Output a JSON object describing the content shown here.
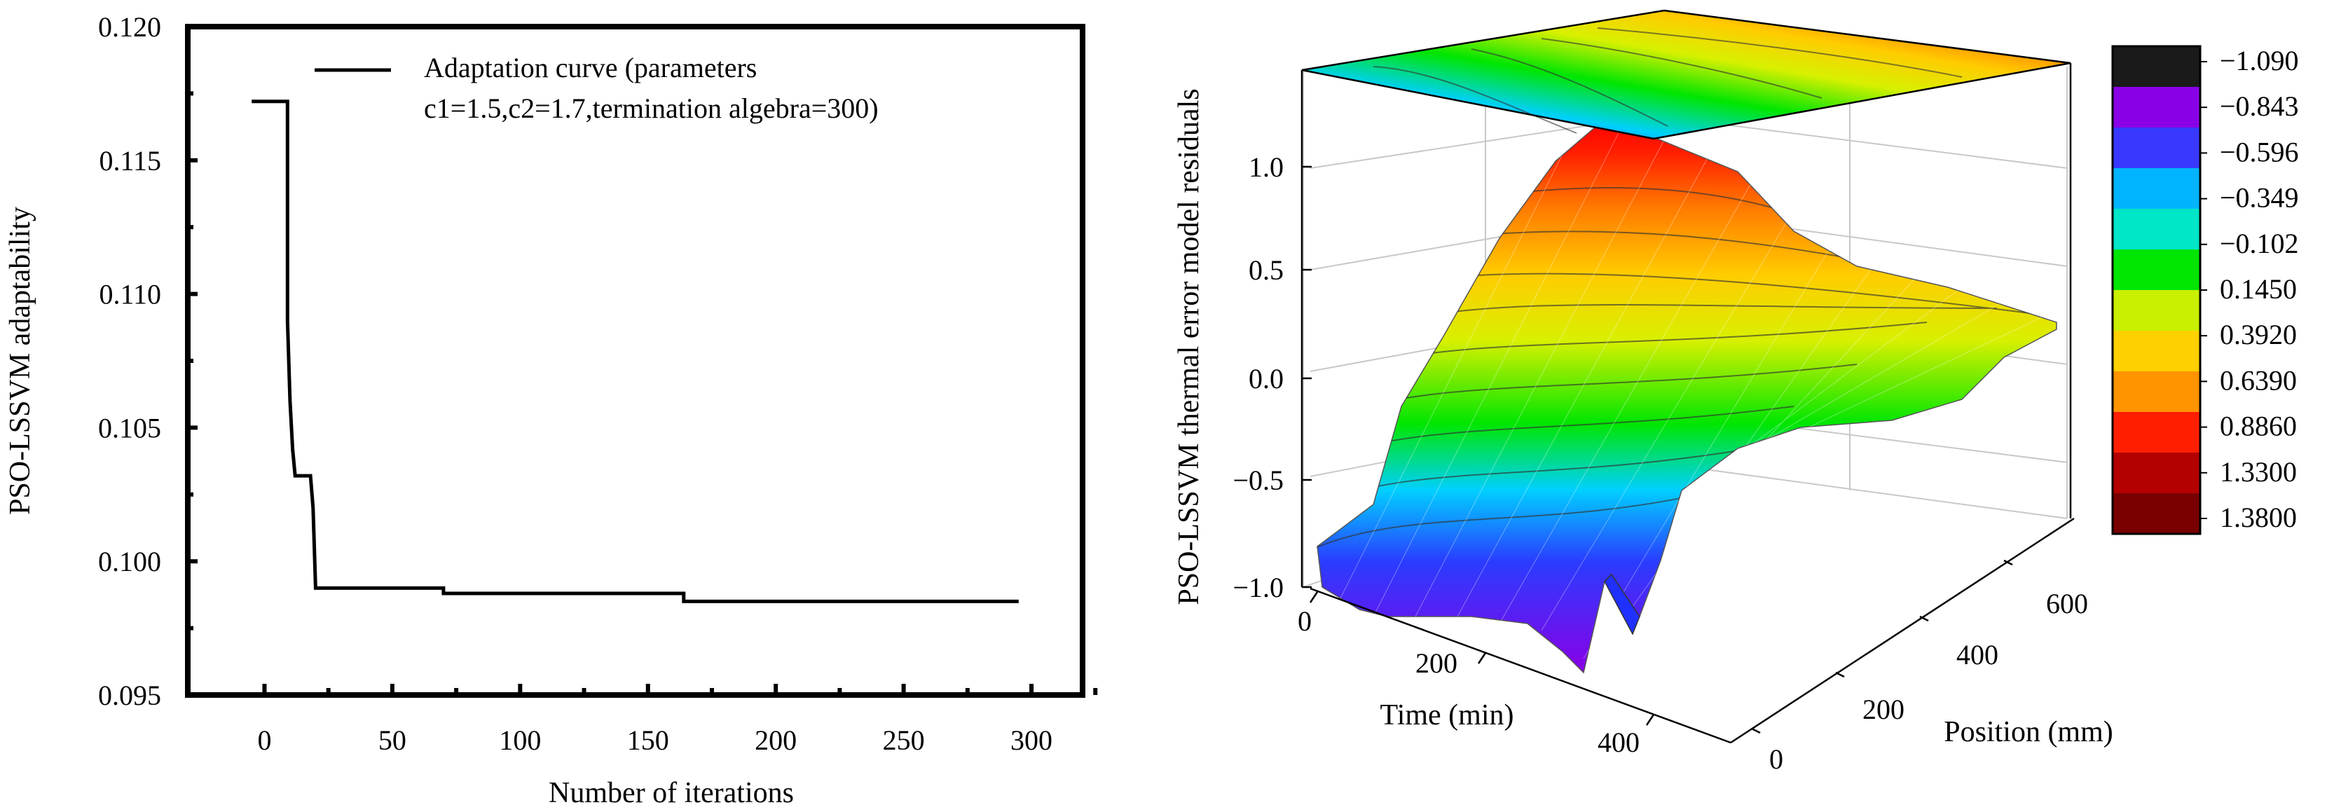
{
  "chart_data": [
    {
      "type": "line",
      "title": "",
      "xlabel": "Number of iterations",
      "ylabel": "PSO-LSSVM adaptability",
      "xlim": [
        -30,
        320
      ],
      "ylim": [
        0.095,
        0.12
      ],
      "x_ticks": [
        0,
        50,
        100,
        150,
        200,
        250,
        300
      ],
      "y_ticks": [
        0.095,
        0.1,
        0.105,
        0.11,
        0.115,
        0.12
      ],
      "x_tick_labels": [
        "0",
        "50",
        "100",
        "150",
        "200",
        "250",
        "300"
      ],
      "y_tick_labels": [
        "0.095",
        "0.100",
        "0.105",
        "0.110",
        "0.115",
        "0.120"
      ],
      "legend": {
        "line1": "Adaptation curve (parameters",
        "line2": "c1=1.5,c2=1.7,termination algebra=300)",
        "position": "top-right"
      },
      "series": [
        {
          "name": "Adaptation curve (parameters c1=1.5,c2=1.7,termination algebra=300)",
          "x": [
            -5,
            9,
            9,
            10,
            11,
            12,
            18,
            19,
            20,
            70,
            70,
            164,
            164,
            295
          ],
          "y": [
            0.1172,
            0.1172,
            0.109,
            0.106,
            0.1042,
            0.1032,
            0.1032,
            0.102,
            0.099,
            0.099,
            0.0988,
            0.0988,
            0.0985,
            0.0985
          ]
        }
      ]
    },
    {
      "type": "surface3d",
      "title": "",
      "xlabel": "Time (min)",
      "ylabel": "Position (mm)",
      "zlabel": "PSO-LSSVM thermal error model residuals",
      "xlim": [
        0,
        450
      ],
      "ylim": [
        0,
        650
      ],
      "zlim": [
        -1.0,
        1.4
      ],
      "x_ticks": [
        "0",
        "200",
        "400"
      ],
      "y_ticks": [
        "0",
        "200",
        "400",
        "600"
      ],
      "z_ticks": [
        "1.0",
        "0.5",
        "0.0",
        "−0.5",
        "−1.0"
      ],
      "colorbar": {
        "labels": [
          "−1.090",
          "−0.843",
          "−0.596",
          "−0.349",
          "−0.102",
          "0.1450",
          "0.3920",
          "0.6390",
          "0.8860",
          "1.3300",
          "1.3800"
        ],
        "colors": [
          "#1a1a1a",
          "#8a00e6",
          "#3838ff",
          "#00b4ff",
          "#00e6c8",
          "#00e600",
          "#c8f000",
          "#ffd000",
          "#ff9400",
          "#ff1e00",
          "#b40000",
          "#780000"
        ]
      }
    }
  ]
}
